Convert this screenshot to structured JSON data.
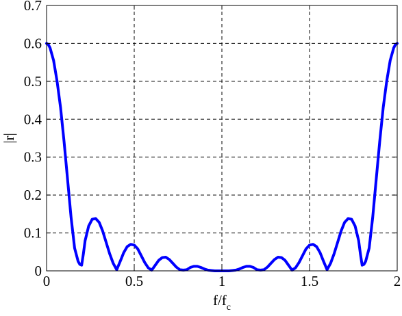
{
  "chart_data": {
    "type": "line",
    "title": "",
    "xlabel": "f/f",
    "xlabel_subscript": "c",
    "ylabel": "|r|",
    "xlim": [
      0,
      2
    ],
    "ylim": [
      0,
      0.7
    ],
    "x_ticks": [
      0,
      0.5,
      1,
      1.5,
      2
    ],
    "x_tick_labels": [
      "0",
      "0.5",
      "1",
      "1.5",
      "2"
    ],
    "y_ticks": [
      0,
      0.1,
      0.2,
      0.3,
      0.4,
      0.5,
      0.6,
      0.7
    ],
    "y_tick_labels": [
      "0",
      "0.1",
      "0.2",
      "0.3",
      "0.4",
      "0.5",
      "0.6",
      "0.7"
    ],
    "grid": true,
    "legend": "none",
    "series": [
      {
        "color": "#0000ff",
        "x": [
          0,
          0.01,
          0.02,
          0.04,
          0.06,
          0.08,
          0.1,
          0.12,
          0.14,
          0.16,
          0.18,
          0.19,
          0.2,
          0.21,
          0.22,
          0.24,
          0.26,
          0.28,
          0.3,
          0.32,
          0.34,
          0.36,
          0.38,
          0.4,
          0.42,
          0.44,
          0.46,
          0.48,
          0.5,
          0.52,
          0.54,
          0.56,
          0.58,
          0.6,
          0.62,
          0.64,
          0.66,
          0.68,
          0.7,
          0.72,
          0.74,
          0.76,
          0.78,
          0.8,
          0.82,
          0.84,
          0.86,
          0.88,
          0.9,
          0.92,
          0.94,
          0.96,
          0.98,
          1.0,
          1.02,
          1.04,
          1.06,
          1.08,
          1.1,
          1.12,
          1.14,
          1.16,
          1.18,
          1.2,
          1.22,
          1.24,
          1.26,
          1.28,
          1.3,
          1.32,
          1.34,
          1.36,
          1.38,
          1.4,
          1.42,
          1.44,
          1.46,
          1.48,
          1.5,
          1.52,
          1.54,
          1.56,
          1.58,
          1.6,
          1.62,
          1.64,
          1.66,
          1.68,
          1.7,
          1.72,
          1.74,
          1.76,
          1.78,
          1.79,
          1.8,
          1.81,
          1.82,
          1.84,
          1.86,
          1.88,
          1.9,
          1.92,
          1.94,
          1.96,
          1.98,
          1.99,
          2.0
        ],
        "y": [
          0.6,
          0.597,
          0.588,
          0.555,
          0.5,
          0.43,
          0.34,
          0.24,
          0.14,
          0.06,
          0.025,
          0.017,
          0.015,
          0.045,
          0.08,
          0.118,
          0.136,
          0.138,
          0.128,
          0.105,
          0.075,
          0.045,
          0.02,
          0.003,
          0.025,
          0.048,
          0.064,
          0.07,
          0.068,
          0.058,
          0.04,
          0.022,
          0.008,
          0.002,
          0.015,
          0.028,
          0.035,
          0.036,
          0.03,
          0.02,
          0.01,
          0.003,
          0.002,
          0.003,
          0.009,
          0.012,
          0.012,
          0.009,
          0.005,
          0.002,
          0.001,
          0.0,
          0.0,
          0.0,
          0.0,
          0.0,
          0.001,
          0.002,
          0.005,
          0.009,
          0.012,
          0.012,
          0.009,
          0.003,
          0.002,
          0.003,
          0.01,
          0.02,
          0.03,
          0.036,
          0.035,
          0.028,
          0.015,
          0.002,
          0.008,
          0.022,
          0.04,
          0.058,
          0.068,
          0.07,
          0.064,
          0.048,
          0.025,
          0.003,
          0.02,
          0.045,
          0.075,
          0.105,
          0.128,
          0.138,
          0.136,
          0.118,
          0.08,
          0.045,
          0.015,
          0.017,
          0.025,
          0.06,
          0.14,
          0.24,
          0.34,
          0.43,
          0.5,
          0.555,
          0.588,
          0.597,
          0.6
        ]
      }
    ]
  }
}
